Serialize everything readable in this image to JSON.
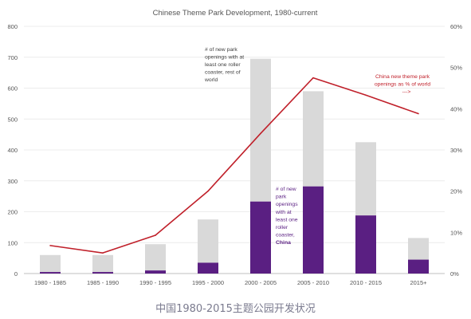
{
  "chart_data": {
    "type": "bar",
    "title": "Chinese Theme Park Development, 1980-current",
    "categories": [
      "1980 - 1985",
      "1985 - 1990",
      "1990 - 1995",
      "1995 - 2000",
      "2000 - 2005",
      "2005 - 2010",
      "2010 - 2015",
      "2015+"
    ],
    "series": [
      {
        "name": "# of new park openings with at least one roller coaster, China",
        "kind": "bar",
        "axis": "left",
        "color": "#5a1f82",
        "values": [
          5,
          5,
          10,
          35,
          233,
          282,
          188,
          45
        ]
      },
      {
        "name": "# of new park openings with at least one roller coaster, rest of world",
        "kind": "bar",
        "axis": "left",
        "color": "#d9d9d9",
        "values": [
          55,
          55,
          85,
          140,
          462,
          308,
          237,
          70
        ]
      },
      {
        "name": "China new theme park openings as % of world",
        "kind": "line",
        "axis": "right",
        "color": "#c0202a",
        "values": [
          6.8,
          5.0,
          9.3,
          20.0,
          34.0,
          47.5,
          43.3,
          38.8
        ]
      }
    ],
    "ylim": [
      0,
      800
    ],
    "yticks": [
      "0",
      "100",
      "200",
      "300",
      "400",
      "500",
      "600",
      "700",
      "800"
    ],
    "y2lim": [
      0,
      60
    ],
    "y2ticks": [
      "0%",
      "10%",
      "20%",
      "30%",
      "40%",
      "50%",
      "60%"
    ],
    "annotations": {
      "rest_of_world": [
        "# of new park",
        "openings with at",
        "least one roller",
        "coaster, rest of",
        "world"
      ],
      "china": [
        "# of new",
        "park",
        "openings",
        "with at",
        "least one",
        "roller",
        "coaster,",
        "China"
      ],
      "line": [
        "China new theme park",
        "openings as % of world",
        "--->"
      ]
    },
    "grid": true,
    "stacked": true
  },
  "caption": "中国1980-2015主题公园开发状况"
}
